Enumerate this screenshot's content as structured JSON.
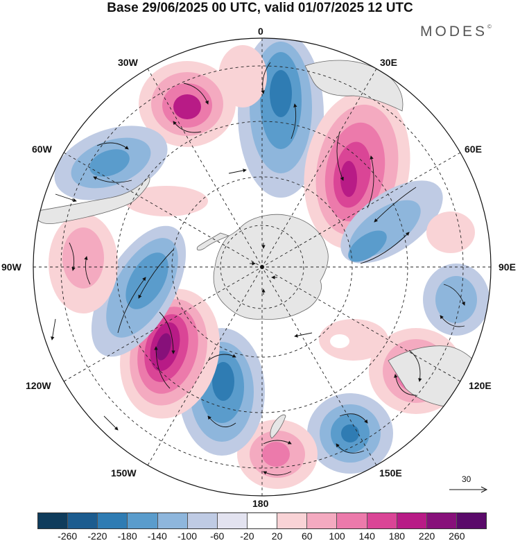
{
  "header": {
    "title": "Base 29/06/2025 00 UTC, valid 01/07/2025 12 UTC",
    "brand": "MODES",
    "brand_mark": "©"
  },
  "map": {
    "projection": "south-polar-stereographic",
    "longitude_labels": {
      "lon_0": "0",
      "lon_30e": "30E",
      "lon_60e": "60E",
      "lon_90e": "90E",
      "lon_120e": "120E",
      "lon_150e": "150E",
      "lon_180": "180",
      "lon_150w": "150W",
      "lon_120w": "120W",
      "lon_90w": "90W",
      "lon_60w": "60W",
      "lon_30w": "30W"
    },
    "land_color": "#e6e6e6",
    "grid": true
  },
  "reference_vector": {
    "value": "30"
  },
  "colorbar": {
    "ticks": [
      "-260",
      "-220",
      "-180",
      "-140",
      "-100",
      "-60",
      "-20",
      "20",
      "60",
      "100",
      "140",
      "180",
      "220",
      "260"
    ],
    "colors": [
      "#0f3c5c",
      "#1c5c8f",
      "#2f7cb3",
      "#5a9ccc",
      "#8eb6dc",
      "#bfcbe4",
      "#e3e3f0",
      "#ffffff",
      "#f9d3d6",
      "#f4aac0",
      "#ec7aab",
      "#da4596",
      "#b81b86",
      "#87107a",
      "#5a0a6a"
    ]
  }
}
